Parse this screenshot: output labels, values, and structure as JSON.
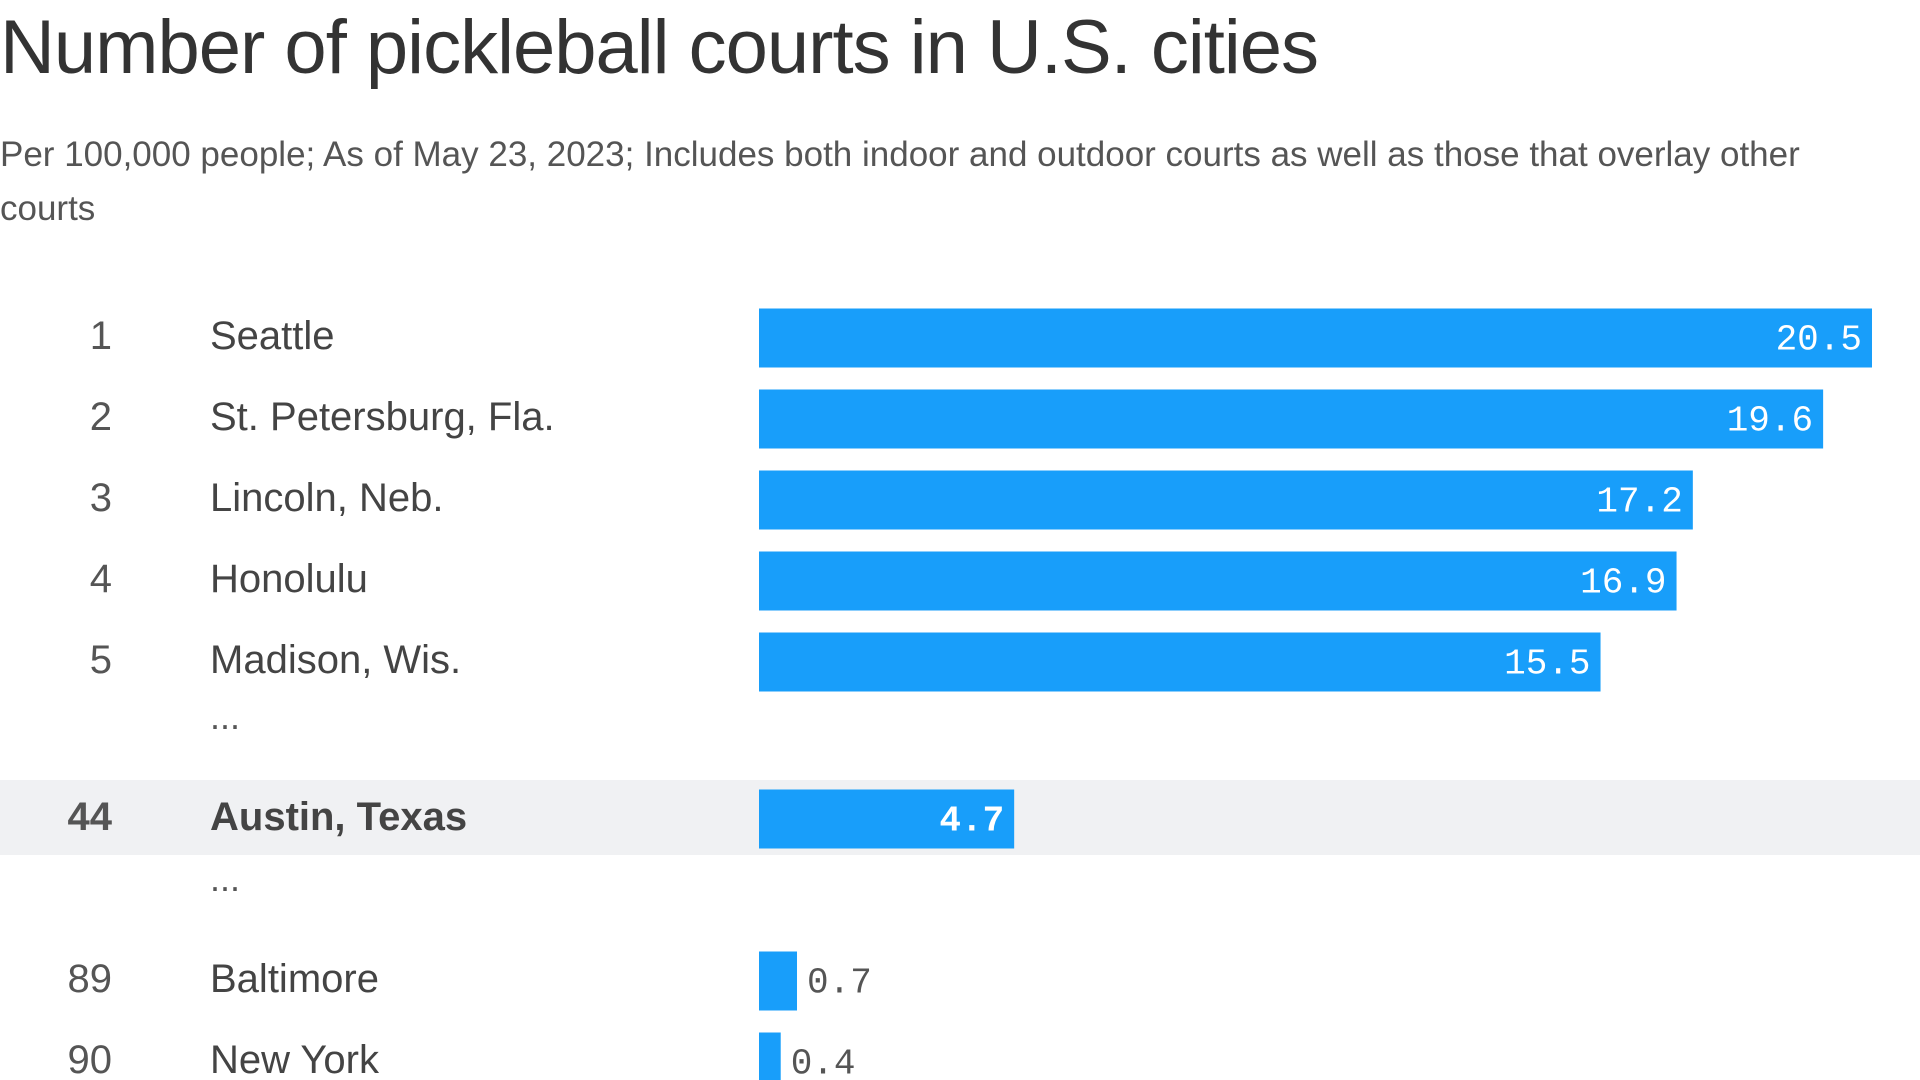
{
  "chart_data": {
    "type": "bar",
    "orientation": "horizontal",
    "title": "Number of pickleball courts in U.S. cities",
    "subtitle": "Per 100,000 people; As of May 23, 2023; Includes both indoor and outdoor courts as well as those that overlay other courts",
    "xlim": [
      0,
      20.5
    ],
    "grid": false,
    "colors": {
      "bar": "#189EFA",
      "highlight_row": "#F0F1F3",
      "label_inside": "#ffffff",
      "label_outside": "#555555"
    },
    "rows": [
      {
        "rank": "1",
        "city": "Seattle",
        "value": 20.5,
        "label": "20.5"
      },
      {
        "rank": "2",
        "city": "St. Petersburg, Fla.",
        "value": 19.6,
        "label": "19.6"
      },
      {
        "rank": "3",
        "city": "Lincoln, Neb.",
        "value": 17.2,
        "label": "17.2"
      },
      {
        "rank": "4",
        "city": "Honolulu",
        "value": 16.9,
        "label": "16.9"
      },
      {
        "rank": "5",
        "city": "Madison, Wis.",
        "value": 15.5,
        "label": "15.5"
      },
      {
        "ellipsis": "..."
      },
      {
        "rank": "44",
        "city": "Austin, Texas",
        "value": 4.7,
        "label": "4.7",
        "highlight": true
      },
      {
        "ellipsis": "..."
      },
      {
        "rank": "89",
        "city": "Baltimore",
        "value": 0.7,
        "label": "0.7"
      },
      {
        "rank": "90",
        "city": "New York",
        "value": 0.4,
        "label": "0.4"
      }
    ]
  }
}
